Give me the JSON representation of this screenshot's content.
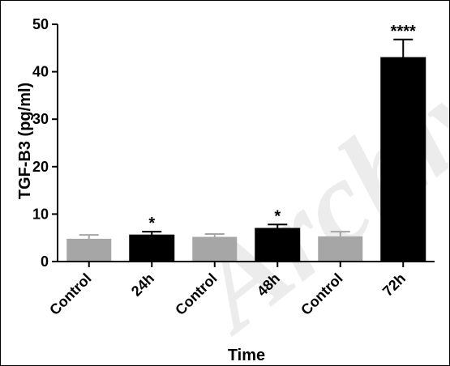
{
  "watermark": "Archive",
  "chart_data": {
    "type": "bar",
    "title": "",
    "xlabel": "Time",
    "ylabel": "TGF-B3  (pg/ml)",
    "ylim": [
      0,
      50
    ],
    "yticks": [
      0,
      10,
      20,
      30,
      40,
      50
    ],
    "categories": [
      "Control",
      "24h",
      "Control",
      "48h",
      "Control",
      "72h"
    ],
    "values": [
      4.8,
      5.6,
      5.2,
      7.0,
      5.3,
      43.0
    ],
    "errors": [
      0.8,
      0.7,
      0.6,
      0.8,
      1.0,
      3.8
    ],
    "significance": [
      "",
      "*",
      "",
      "*",
      "",
      "****"
    ],
    "bar_colors": [
      "#a6a6a6",
      "#000000",
      "#a6a6a6",
      "#000000",
      "#a6a6a6",
      "#000000"
    ],
    "grid": false,
    "legend": "none"
  }
}
